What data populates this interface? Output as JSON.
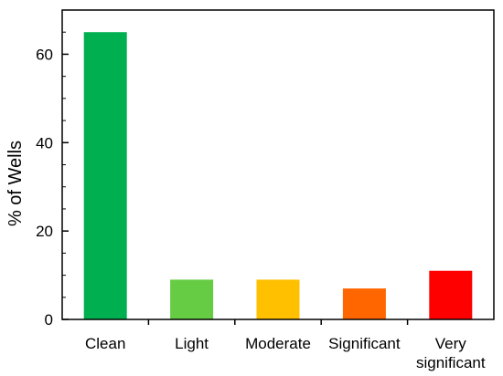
{
  "chart_data": {
    "type": "bar",
    "title": "",
    "xlabel": "",
    "ylabel": "% of Wells",
    "ylim": [
      0,
      70
    ],
    "yticks": [
      0,
      20,
      40,
      60
    ],
    "grid": false,
    "legend": "none",
    "categories": [
      {
        "lines": [
          "Clean"
        ]
      },
      {
        "lines": [
          "Light"
        ]
      },
      {
        "lines": [
          "Moderate"
        ]
      },
      {
        "lines": [
          "Significant"
        ]
      },
      {
        "lines": [
          "Very",
          "significant"
        ]
      }
    ],
    "values": [
      65,
      9,
      9,
      7,
      11
    ],
    "colors": [
      "#00b050",
      "#66cc44",
      "#ffc000",
      "#ff6600",
      "#ff0000"
    ]
  }
}
